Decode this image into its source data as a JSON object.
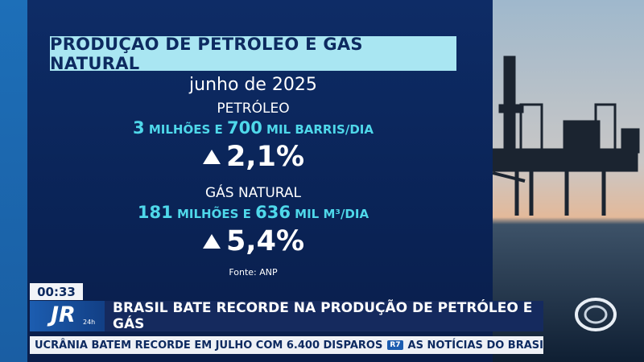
{
  "graphic": {
    "title": "PRODUÇÃO DE PETRÓLEO E GÁS NATURAL",
    "period": "junho de 2025",
    "oil": {
      "label": "PETRÓLEO",
      "value_parts": [
        "3",
        " MILHÕES E ",
        "700",
        " MIL BARRIS/DIA"
      ],
      "change": "2,1%"
    },
    "gas": {
      "label": "GÁS NATURAL",
      "value_parts": [
        "181",
        " MILHÕES E ",
        "636",
        " MIL M³/DIA"
      ],
      "change": "5,4%"
    },
    "source": "Fonte: ANP"
  },
  "lower_third": {
    "time": "00:33",
    "logo": "JR",
    "logo_sub": "24h",
    "headline": "BRASIL BATE RECORDE NA PRODUÇÃO DE PETRÓLEO E GÁS"
  },
  "ticker": {
    "items": [
      "UCRÂNIA BATEM RECORDE EM JULHO COM 6.400 DISPAROS",
      "AS NOTÍCIAS DO BRASIL E DO MUNDO EST"
    ],
    "badge": "R7"
  }
}
